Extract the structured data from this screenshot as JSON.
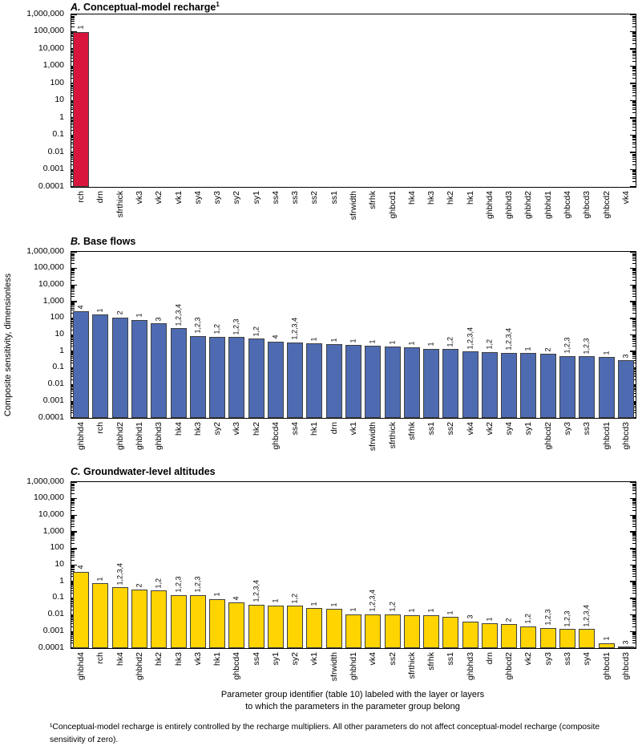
{
  "figure": {
    "y_axis_label": "Composite sensitivity, dimensionless",
    "x_axis_caption": {
      "line1": "Parameter group identifier (table 10) labeled with the layer or layers",
      "line2": "to which the parameters in the parameter group belong"
    },
    "footnote": "¹Conceptual-model recharge is entirely controlled by the recharge multipliers.  All other parameters do not affect conceptual-model recharge (composite sensitivity of zero).",
    "y_tick_labels": [
      "1,000,000",
      "100,000",
      "10,000",
      "1,000",
      "100",
      "10",
      "1",
      "0.1",
      "0.01",
      "0.001",
      "0.0001"
    ],
    "colors": {
      "panel_a_bar": "#D8163D",
      "panel_b_bar": "#4E6BB2",
      "panel_c_bar": "#FFD400",
      "bar_border": "#3F3F3F",
      "axis": "#000000"
    }
  },
  "chart_data": [
    {
      "type": "bar",
      "panel_letter": "A.",
      "title": "Conceptual-model recharge",
      "title_superscript": "1",
      "y_scale": "log",
      "ylim": [
        0.0001,
        1000000
      ],
      "grid": false,
      "bar_color": "#D8163D",
      "categories": [
        "rch",
        "drn",
        "sfrthick",
        "vk3",
        "vk2",
        "vk1",
        "sy4",
        "sy3",
        "sy2",
        "sy1",
        "ss4",
        "ss3",
        "ss2",
        "ss1",
        "sfrwidth",
        "sfrhk",
        "ghbcd1",
        "hk4",
        "hk3",
        "hk2",
        "hk1",
        "ghbhd4",
        "ghbhd3",
        "ghbhd2",
        "ghbhd1",
        "ghbcd4",
        "ghbcd3",
        "ghbcd2",
        "vk4"
      ],
      "values": [
        100000,
        0,
        0,
        0,
        0,
        0,
        0,
        0,
        0,
        0,
        0,
        0,
        0,
        0,
        0,
        0,
        0,
        0,
        0,
        0,
        0,
        0,
        0,
        0,
        0,
        0,
        0,
        0,
        0
      ],
      "bar_labels": [
        "1",
        "",
        "",
        "",
        "",
        "",
        "",
        "",
        "",
        "",
        "",
        "",
        "",
        "",
        "",
        "",
        "",
        "",
        "",
        "",
        "",
        "",
        "",
        "",
        "",
        "",
        "",
        "",
        ""
      ]
    },
    {
      "type": "bar",
      "panel_letter": "B.",
      "title": "Base flows",
      "title_superscript": "",
      "y_scale": "log",
      "ylim": [
        0.0001,
        1000000
      ],
      "grid": false,
      "bar_color": "#4E6BB2",
      "categories": [
        "ghbhd4",
        "rch",
        "ghbhd2",
        "ghbhd1",
        "ghbhd3",
        "hk4",
        "hk3",
        "sy2",
        "vk3",
        "hk2",
        "ghbcd4",
        "ss4",
        "hk1",
        "drn",
        "vk1",
        "sfrwidth",
        "sfrthick",
        "sfrhk",
        "ss1",
        "ss2",
        "vk4",
        "vk2",
        "sy4",
        "sy1",
        "ghbcd2",
        "sy3",
        "ss3",
        "ghbcd1",
        "ghbcd3"
      ],
      "values": [
        260,
        170,
        115,
        80,
        50,
        25,
        8.5,
        8,
        7.5,
        6,
        4,
        3.5,
        3.1,
        2.7,
        2.4,
        2.2,
        1.9,
        1.7,
        1.5,
        1.4,
        1.0,
        0.95,
        0.85,
        0.8,
        0.7,
        0.55,
        0.5,
        0.45,
        0.3
      ],
      "bar_labels": [
        "4",
        "1",
        "2",
        "1",
        "3",
        "1,2,3,4",
        "1,2,3",
        "1,2",
        "1,2,3",
        "1,2",
        "4",
        "1,2,3,4",
        "1",
        "1",
        "1",
        "1",
        "1",
        "1",
        "1",
        "1,2",
        "1,2,3,4",
        "1,2",
        "1,2,3,4",
        "1",
        "2",
        "1,2,3",
        "1,2,3",
        "1",
        "3"
      ]
    },
    {
      "type": "bar",
      "panel_letter": "C.",
      "title": "Groundwater-level altitudes",
      "title_superscript": "",
      "y_scale": "log",
      "ylim": [
        0.0001,
        1000000
      ],
      "grid": false,
      "bar_color": "#FFD400",
      "categories": [
        "ghbhd4",
        "rch",
        "hk4",
        "ghbhd2",
        "hk2",
        "hk3",
        "vk3",
        "hk1",
        "ghbcd4",
        "ss4",
        "sy1",
        "sy2",
        "vk1",
        "sfrwidth",
        "ghbhd1",
        "vk4",
        "ss2",
        "sfrthick",
        "sfrhk",
        "ss1",
        "ghbhd3",
        "drn",
        "ghbcd2",
        "vk2",
        "sy3",
        "ss3",
        "sy4",
        "ghbcd1",
        "ghbcd3"
      ],
      "values": [
        4,
        0.8,
        0.45,
        0.32,
        0.3,
        0.16,
        0.16,
        0.09,
        0.055,
        0.042,
        0.038,
        0.036,
        0.026,
        0.023,
        0.011,
        0.011,
        0.011,
        0.01,
        0.01,
        0.0075,
        0.004,
        0.003,
        0.0027,
        0.0021,
        0.0017,
        0.0014,
        0.0014,
        0.0002,
        0.00012
      ],
      "bar_labels": [
        "4",
        "1",
        "1,2,3,4",
        "2",
        "1,2",
        "1,2,3",
        "1,2,3",
        "1",
        "4",
        "1,2,3,4",
        "1",
        "1,2",
        "1",
        "1",
        "1",
        "1,2,3,4",
        "1,2",
        "1",
        "1",
        "1",
        "3",
        "1",
        "2",
        "1,2",
        "1,2,3",
        "1,2,3",
        "1,2,3,4",
        "1",
        "3"
      ]
    }
  ]
}
